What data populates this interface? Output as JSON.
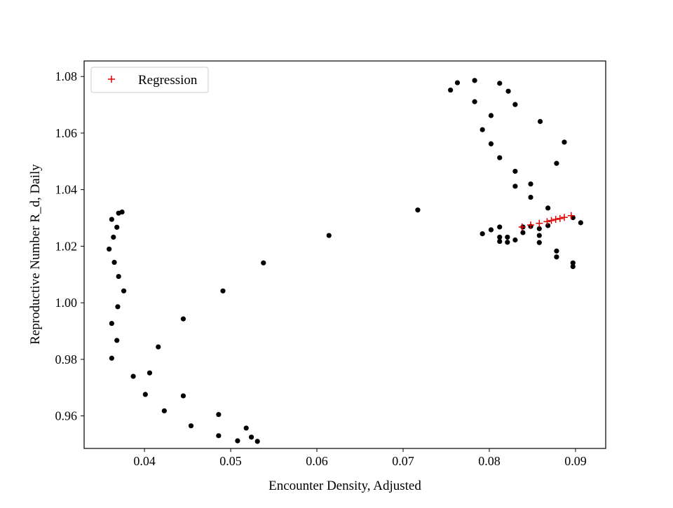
{
  "chart_data": {
    "type": "scatter",
    "title": "",
    "xlabel": "Encounter Density, Adjusted",
    "ylabel": "Reproductive Number R_d, Daily",
    "xlim": [
      0.033,
      0.0935
    ],
    "ylim": [
      0.9485,
      1.0855
    ],
    "x_ticks": [
      0.04,
      0.05,
      0.06,
      0.07,
      0.08,
      0.09
    ],
    "x_tick_labels": [
      "0.04",
      "0.05",
      "0.06",
      "0.07",
      "0.08",
      "0.09"
    ],
    "y_ticks": [
      0.96,
      0.98,
      1.0,
      1.02,
      1.04,
      1.06,
      1.08
    ],
    "y_tick_labels": [
      "0.96",
      "0.98",
      "1.00",
      "1.02",
      "1.04",
      "1.06",
      "1.08"
    ],
    "grid": false,
    "legend_position": "top-left",
    "series": [
      {
        "name": "",
        "marker": "circle",
        "color": "#000000",
        "points": [
          [
            0.0362,
            1.0295
          ],
          [
            0.037,
            1.0317
          ],
          [
            0.0374,
            1.0321
          ],
          [
            0.0368,
            1.0267
          ],
          [
            0.0364,
            1.0232
          ],
          [
            0.0359,
            1.019
          ],
          [
            0.0365,
            1.0143
          ],
          [
            0.037,
            1.0093
          ],
          [
            0.0376,
            1.0042
          ],
          [
            0.0369,
            0.9986
          ],
          [
            0.0362,
            0.9927
          ],
          [
            0.0368,
            0.9867
          ],
          [
            0.0362,
            0.9804
          ],
          [
            0.0387,
            0.974
          ],
          [
            0.0401,
            0.9676
          ],
          [
            0.0406,
            0.9752
          ],
          [
            0.0416,
            0.9844
          ],
          [
            0.0423,
            0.9618
          ],
          [
            0.0445,
            0.9943
          ],
          [
            0.0445,
            0.9671
          ],
          [
            0.0454,
            0.9565
          ],
          [
            0.0486,
            0.9605
          ],
          [
            0.0486,
            0.953
          ],
          [
            0.0491,
            1.0042
          ],
          [
            0.0508,
            0.9512
          ],
          [
            0.0518,
            0.9557
          ],
          [
            0.0524,
            0.9525
          ],
          [
            0.0531,
            0.951
          ],
          [
            0.0538,
            1.0141
          ],
          [
            0.0614,
            1.0238
          ],
          [
            0.0717,
            1.0328
          ],
          [
            0.0755,
            1.0752
          ],
          [
            0.0763,
            1.0778
          ],
          [
            0.0783,
            1.0786
          ],
          [
            0.0783,
            1.0711
          ],
          [
            0.0792,
            1.0612
          ],
          [
            0.0802,
            1.0662
          ],
          [
            0.0802,
            1.0562
          ],
          [
            0.0812,
            1.0776
          ],
          [
            0.0812,
            1.0513
          ],
          [
            0.0822,
            1.0748
          ],
          [
            0.083,
            1.0701
          ],
          [
            0.083,
            1.0465
          ],
          [
            0.083,
            1.0412
          ],
          [
            0.0859,
            1.0641
          ],
          [
            0.0848,
            1.042
          ],
          [
            0.0848,
            1.0373
          ],
          [
            0.0868,
            1.0335
          ],
          [
            0.0887,
            1.0568
          ],
          [
            0.0878,
            1.0493
          ],
          [
            0.0792,
            1.0244
          ],
          [
            0.0802,
            1.0258
          ],
          [
            0.0812,
            1.0268
          ],
          [
            0.0812,
            1.0232
          ],
          [
            0.0812,
            1.0217
          ],
          [
            0.0821,
            1.0232
          ],
          [
            0.0821,
            1.0214
          ],
          [
            0.083,
            1.0222
          ],
          [
            0.0839,
            1.0248
          ],
          [
            0.0839,
            1.0268
          ],
          [
            0.0848,
            1.027
          ],
          [
            0.0858,
            1.0262
          ],
          [
            0.0858,
            1.0238
          ],
          [
            0.0858,
            1.0213
          ],
          [
            0.0868,
            1.0273
          ],
          [
            0.0878,
            1.0183
          ],
          [
            0.0878,
            1.0162
          ],
          [
            0.0897,
            1.0301
          ],
          [
            0.0897,
            1.0141
          ],
          [
            0.0897,
            1.0128
          ],
          [
            0.0906,
            1.0283
          ]
        ]
      },
      {
        "name": "Regression",
        "marker": "plus",
        "color": "#e00000",
        "points": [
          [
            0.0838,
            1.0268
          ],
          [
            0.0848,
            1.0275
          ],
          [
            0.0858,
            1.0281
          ],
          [
            0.0867,
            1.0287
          ],
          [
            0.0872,
            1.0291
          ],
          [
            0.0877,
            1.0295
          ],
          [
            0.0882,
            1.0298
          ],
          [
            0.0887,
            1.0302
          ],
          [
            0.0895,
            1.0308
          ]
        ]
      }
    ]
  }
}
